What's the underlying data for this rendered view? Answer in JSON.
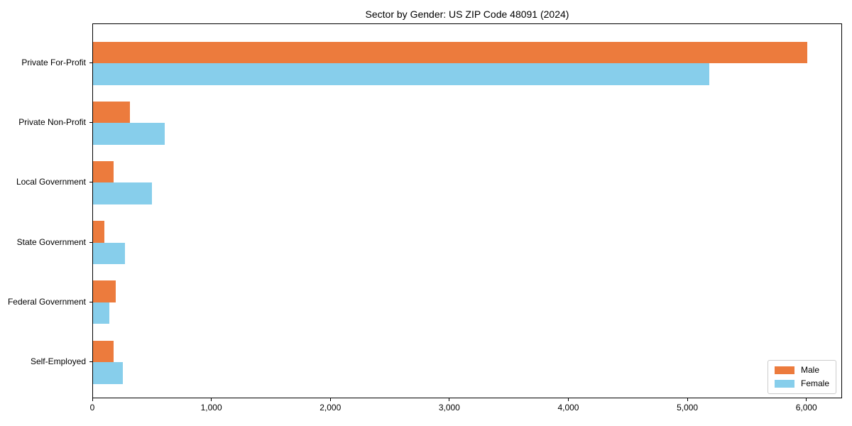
{
  "chart_data": {
    "type": "bar",
    "orientation": "horizontal",
    "title": "Sector by Gender: US ZIP Code 48091 (2024)",
    "categories": [
      "Private For-Profit",
      "Private Non-Profit",
      "Local Government",
      "State Government",
      "Federal Government",
      "Self-Employed"
    ],
    "series": [
      {
        "name": "Male",
        "color": "#ec7b3d",
        "values": [
          6000,
          310,
          175,
          95,
          190,
          175
        ]
      },
      {
        "name": "Female",
        "color": "#87ceeb",
        "values": [
          5180,
          600,
          495,
          270,
          140,
          250
        ]
      }
    ],
    "xlabel": "",
    "ylabel": "",
    "xlim": [
      0,
      6300
    ],
    "xticks": [
      0,
      1000,
      2000,
      3000,
      4000,
      5000,
      6000
    ],
    "xtick_labels": [
      "0",
      "1,000",
      "2,000",
      "3,000",
      "4,000",
      "5,000",
      "6,000"
    ],
    "grid": false,
    "legend_position": "lower-right",
    "legend_entries": [
      "Male",
      "Female"
    ]
  }
}
